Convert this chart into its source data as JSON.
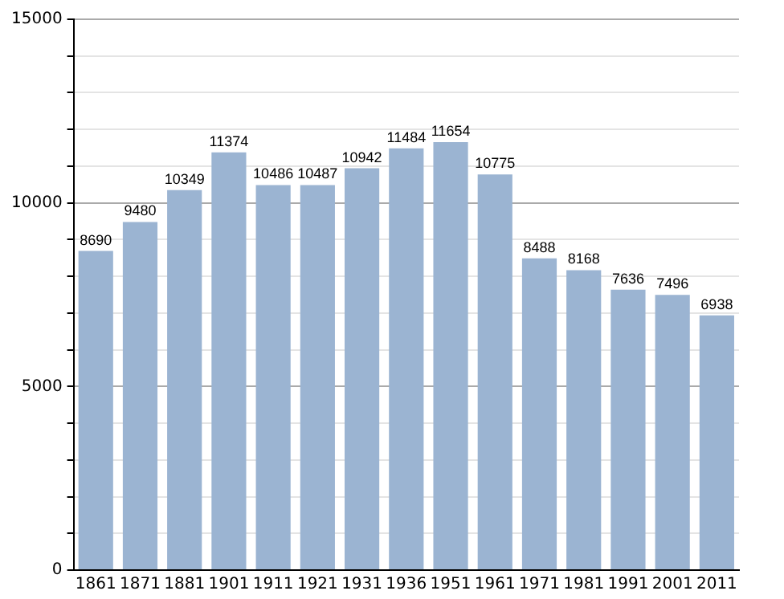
{
  "chart_data": {
    "type": "bar",
    "categories": [
      "1861",
      "1871",
      "1881",
      "1901",
      "1911",
      "1921",
      "1931",
      "1936",
      "1951",
      "1961",
      "1971",
      "1981",
      "1991",
      "2001",
      "2011"
    ],
    "values": [
      8690,
      9480,
      10349,
      11374,
      10486,
      10487,
      10942,
      11484,
      11654,
      10775,
      8488,
      8168,
      7636,
      7496,
      6938
    ],
    "color": "#9bb4d2",
    "ylim": [
      0,
      15000
    ],
    "yticks": [
      0,
      {
        "value": 1000,
        "label": null
      },
      {
        "value": 2000,
        "label": null
      },
      {
        "value": 3000,
        "label": null
      },
      {
        "value": 4000,
        "label": null
      },
      5000,
      {
        "value": 6000,
        "label": null
      },
      {
        "value": 7000,
        "label": null
      },
      {
        "value": 8000,
        "label": null
      },
      {
        "value": 9000,
        "label": null
      },
      10000,
      {
        "value": 11000,
        "label": null
      },
      {
        "value": 12000,
        "label": null
      },
      {
        "value": 13000,
        "label": null
      },
      {
        "value": 14000,
        "label": null
      },
      15000
    ],
    "grid": "y",
    "data_labels": true,
    "legend": false
  }
}
